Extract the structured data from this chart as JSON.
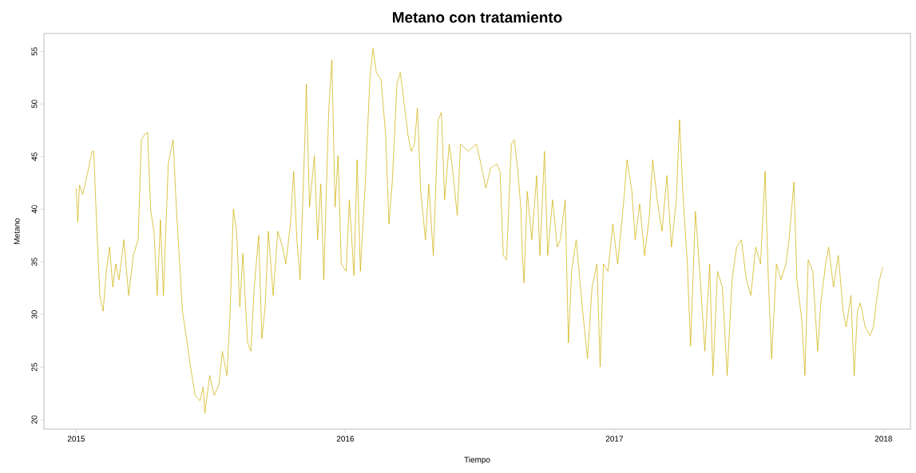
{
  "chart_data": {
    "type": "line",
    "title": "Metano con tratamiento",
    "xlabel": "Tiempo",
    "ylabel": "Metano",
    "xlim": [
      2014.88,
      2018.1
    ],
    "ylim": [
      19.1,
      56.7
    ],
    "xticks": [
      2015,
      2016,
      2017,
      2018
    ],
    "yticks": [
      20,
      25,
      30,
      35,
      40,
      45,
      50,
      55
    ],
    "series": [
      {
        "color": "#cdad00",
        "x": [
          2015.0,
          2015.006,
          2015.012,
          2015.024,
          2015.041,
          2015.059,
          2015.065,
          2015.077,
          2015.088,
          2015.1,
          2015.112,
          2015.124,
          2015.136,
          2015.147,
          2015.159,
          2015.177,
          2015.195,
          2015.212,
          2015.23,
          2015.242,
          2015.254,
          2015.265,
          2015.277,
          2015.289,
          2015.301,
          2015.313,
          2015.324,
          2015.342,
          2015.36,
          2015.372,
          2015.395,
          2015.425,
          2015.442,
          2015.46,
          2015.472,
          2015.478,
          2015.496,
          2015.513,
          2015.531,
          2015.543,
          2015.56,
          2015.572,
          2015.584,
          2015.596,
          2015.608,
          2015.619,
          2015.637,
          2015.649,
          2015.661,
          2015.678,
          2015.69,
          2015.702,
          2015.714,
          2015.732,
          2015.749,
          2015.767,
          2015.779,
          2015.796,
          2015.808,
          2015.82,
          2015.832,
          2015.85,
          2015.855,
          2015.867,
          2015.885,
          2015.897,
          2015.909,
          2015.92,
          2015.938,
          2015.95,
          2015.962,
          2015.973,
          2015.985,
          2016.003,
          2016.015,
          2016.032,
          2016.044,
          2016.056,
          2016.074,
          2016.091,
          2016.103,
          2016.115,
          2016.133,
          2016.15,
          2016.162,
          2016.174,
          2016.192,
          2016.204,
          2016.215,
          2016.233,
          2016.245,
          2016.257,
          2016.268,
          2016.28,
          2016.298,
          2016.31,
          2016.327,
          2016.345,
          2016.357,
          2016.369,
          2016.386,
          2016.398,
          2016.416,
          2016.428,
          2016.457,
          2016.487,
          2016.504,
          2016.522,
          2016.54,
          2016.563,
          2016.575,
          2016.587,
          2016.599,
          2016.617,
          2016.628,
          2016.64,
          2016.652,
          2016.658,
          2016.664,
          2016.676,
          2016.693,
          2016.711,
          2016.723,
          2016.74,
          2016.752,
          2016.77,
          2016.788,
          2016.799,
          2016.817,
          2016.829,
          2016.841,
          2016.858,
          2016.882,
          2016.9,
          2016.917,
          2016.935,
          2016.947,
          2016.959,
          2016.976,
          2016.994,
          2017.012,
          2017.035,
          2017.047,
          2017.065,
          2017.077,
          2017.094,
          2017.112,
          2017.13,
          2017.142,
          2017.159,
          2017.177,
          2017.195,
          2017.212,
          2017.23,
          2017.242,
          2017.254,
          2017.271,
          2017.283,
          2017.301,
          2017.319,
          2017.336,
          2017.354,
          2017.366,
          2017.383,
          2017.401,
          2017.419,
          2017.437,
          2017.454,
          2017.472,
          2017.49,
          2017.507,
          2017.525,
          2017.543,
          2017.56,
          2017.572,
          2017.584,
          2017.602,
          2017.619,
          2017.637,
          2017.649,
          2017.667,
          2017.678,
          2017.696,
          2017.708,
          2017.72,
          2017.737,
          2017.755,
          2017.767,
          2017.785,
          2017.796,
          2017.814,
          2017.832,
          2017.85,
          2017.861,
          2017.879,
          2017.891,
          2017.903,
          2017.914,
          2017.932,
          2017.95,
          2017.962,
          2017.973,
          2017.985,
          2017.997
        ],
        "values": [
          42.0,
          38.8,
          42.3,
          41.4,
          43.3,
          45.5,
          45.5,
          37.9,
          31.8,
          30.3,
          34.1,
          36.4,
          32.6,
          34.8,
          33.3,
          37.1,
          31.8,
          35.6,
          37.1,
          46.6,
          47.1,
          47.3,
          39.8,
          37.9,
          31.8,
          39.0,
          31.8,
          44.3,
          46.6,
          40.2,
          30.3,
          25.0,
          22.3,
          21.8,
          23.1,
          20.6,
          24.2,
          22.3,
          23.4,
          26.5,
          24.2,
          30.3,
          40.0,
          37.9,
          30.7,
          35.8,
          27.3,
          26.5,
          32.4,
          37.5,
          27.7,
          30.7,
          37.9,
          31.8,
          37.9,
          36.4,
          34.8,
          38.6,
          43.6,
          37.1,
          33.3,
          47.0,
          51.9,
          40.2,
          45.1,
          37.1,
          42.4,
          33.3,
          49.2,
          54.2,
          40.2,
          45.1,
          34.8,
          34.1,
          40.9,
          33.7,
          44.7,
          34.1,
          42.4,
          52.3,
          55.3,
          53.0,
          52.3,
          47.0,
          38.6,
          42.4,
          51.9,
          53.0,
          50.8,
          47.0,
          45.5,
          46.2,
          49.6,
          41.7,
          37.1,
          42.4,
          35.6,
          48.5,
          49.2,
          40.9,
          46.2,
          43.9,
          39.4,
          46.2,
          45.5,
          46.2,
          44.3,
          42.0,
          43.9,
          44.3,
          43.6,
          35.6,
          35.2,
          46.2,
          46.6,
          43.9,
          40.2,
          35.6,
          33.0,
          41.7,
          37.1,
          43.2,
          35.6,
          45.5,
          35.6,
          40.9,
          36.4,
          37.1,
          40.9,
          27.3,
          34.1,
          37.1,
          30.3,
          25.8,
          32.6,
          34.8,
          25.0,
          34.8,
          34.1,
          38.6,
          34.8,
          40.9,
          44.7,
          41.7,
          37.1,
          40.5,
          35.6,
          39.4,
          44.7,
          40.9,
          37.9,
          43.2,
          36.4,
          40.9,
          48.5,
          41.7,
          34.8,
          27.0,
          39.8,
          33.3,
          26.5,
          34.8,
          24.2,
          34.1,
          32.6,
          24.2,
          33.3,
          36.4,
          37.1,
          33.3,
          31.8,
          36.4,
          34.8,
          43.6,
          33.3,
          25.8,
          34.8,
          33.3,
          34.8,
          37.1,
          42.6,
          33.3,
          29.5,
          24.2,
          35.2,
          34.1,
          26.5,
          31.1,
          34.8,
          36.4,
          32.6,
          35.6,
          30.3,
          28.8,
          31.8,
          24.2,
          30.3,
          31.1,
          28.8,
          28.0,
          28.8,
          31.1,
          33.3,
          34.5
        ]
      }
    ]
  }
}
